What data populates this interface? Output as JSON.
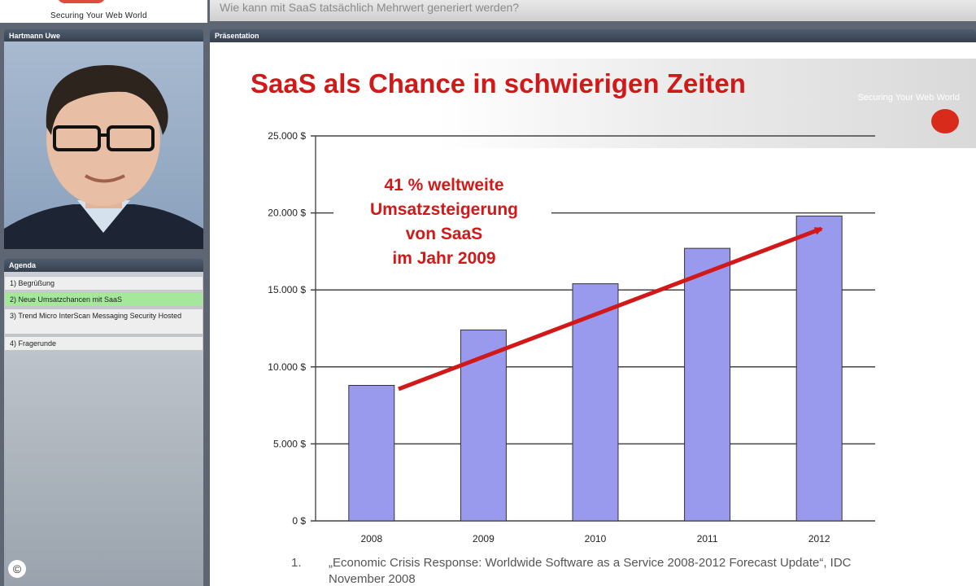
{
  "header": {
    "logo_tagline": "Securing Your Web World",
    "title": "Wie kann mit SaaS tatsächlich Mehrwert generiert werden?"
  },
  "speaker_panel": {
    "title": "Hartmann Uwe"
  },
  "agenda": {
    "title": "Agenda",
    "items": [
      {
        "label": "1) Begrüßung",
        "active": false
      },
      {
        "label": "2) Neue Umsatzchancen mit SaaS",
        "active": true
      },
      {
        "label": "3) Trend Micro InterScan Messaging Security Hosted",
        "active": false
      },
      {
        "label": "4) Fragerunde",
        "active": false
      }
    ]
  },
  "presentation": {
    "panel_title": "Präsentation",
    "slide_title": "SaaS als Chance in schwierigen Zeiten",
    "slide_tagline": "Securing Your Web World",
    "annotation": [
      "41 % weltweite",
      "Umsatzsteigerung",
      "von SaaS",
      "im Jahr 2009"
    ],
    "footnote_number": "1.",
    "footnote_text": "„Economic Crisis Response: Worldwide Software as a Service 2008-2012 Forecast Update“, IDC November 2008"
  },
  "colors": {
    "accent_red": "#d21919",
    "bar_fill": "#9999ee",
    "active_agenda": "#a6e89b",
    "panel_header": "#3f4a58"
  },
  "icons": {
    "copyright": "©"
  },
  "chart_data": {
    "type": "bar",
    "categories": [
      "2008",
      "2009",
      "2010",
      "2011",
      "2012"
    ],
    "values": [
      8800,
      12400,
      15400,
      17700,
      19800
    ],
    "ylim": [
      0,
      25000
    ],
    "yticks": [
      "0 $",
      "5.000 $",
      "10.000 $",
      "15.000 $",
      "20.000 $",
      "25.000 $"
    ],
    "ytick_values": [
      0,
      5000,
      10000,
      15000,
      20000,
      25000
    ],
    "grid": true,
    "title": "",
    "xlabel": "",
    "ylabel": ""
  }
}
